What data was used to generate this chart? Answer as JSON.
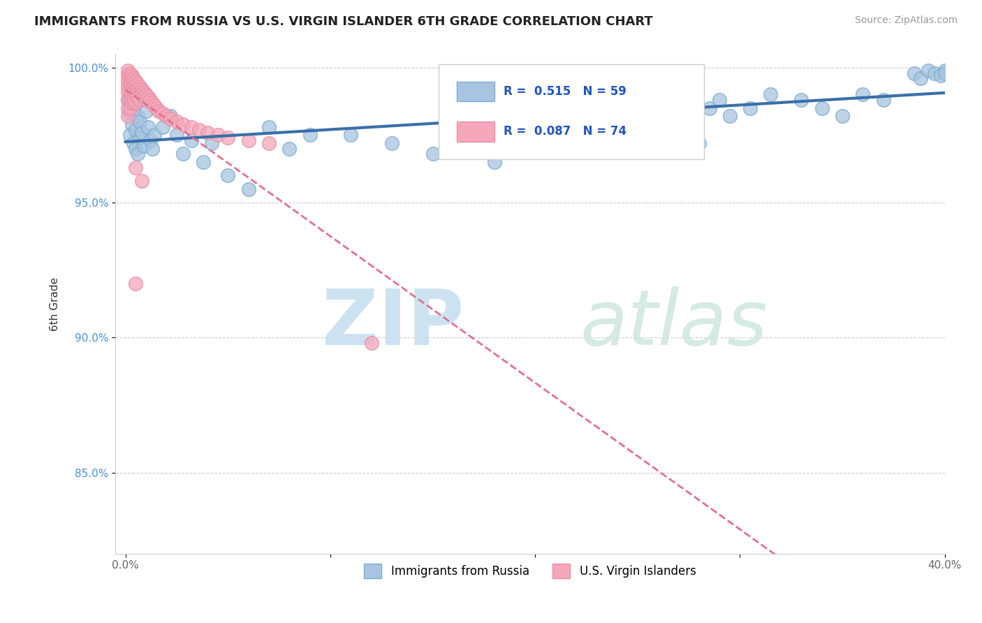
{
  "title": "IMMIGRANTS FROM RUSSIA VS U.S. VIRGIN ISLANDER 6TH GRADE CORRELATION CHART",
  "source": "Source: ZipAtlas.com",
  "ylabel_label": "6th Grade",
  "xlim": [
    -0.005,
    0.4
  ],
  "ylim": [
    0.82,
    1.005
  ],
  "xticks": [
    0.0,
    0.1,
    0.2,
    0.3,
    0.4
  ],
  "xticklabels": [
    "0.0%",
    "",
    "",
    "",
    "40.0%"
  ],
  "yticks": [
    0.85,
    0.9,
    0.95,
    1.0
  ],
  "yticklabels": [
    "85.0%",
    "90.0%",
    "95.0%",
    "100.0%"
  ],
  "legend_blue_label": "Immigrants from Russia",
  "legend_pink_label": "U.S. Virgin Islanders",
  "R_blue": 0.515,
  "N_blue": 59,
  "R_pink": 0.087,
  "N_pink": 74,
  "blue_color": "#a8c4e0",
  "pink_color": "#f4a7b9",
  "blue_line_color": "#3a6fa8",
  "pink_line_color": "#e07090",
  "blue_edge": "#7aaed0",
  "pink_edge": "#e890a8"
}
